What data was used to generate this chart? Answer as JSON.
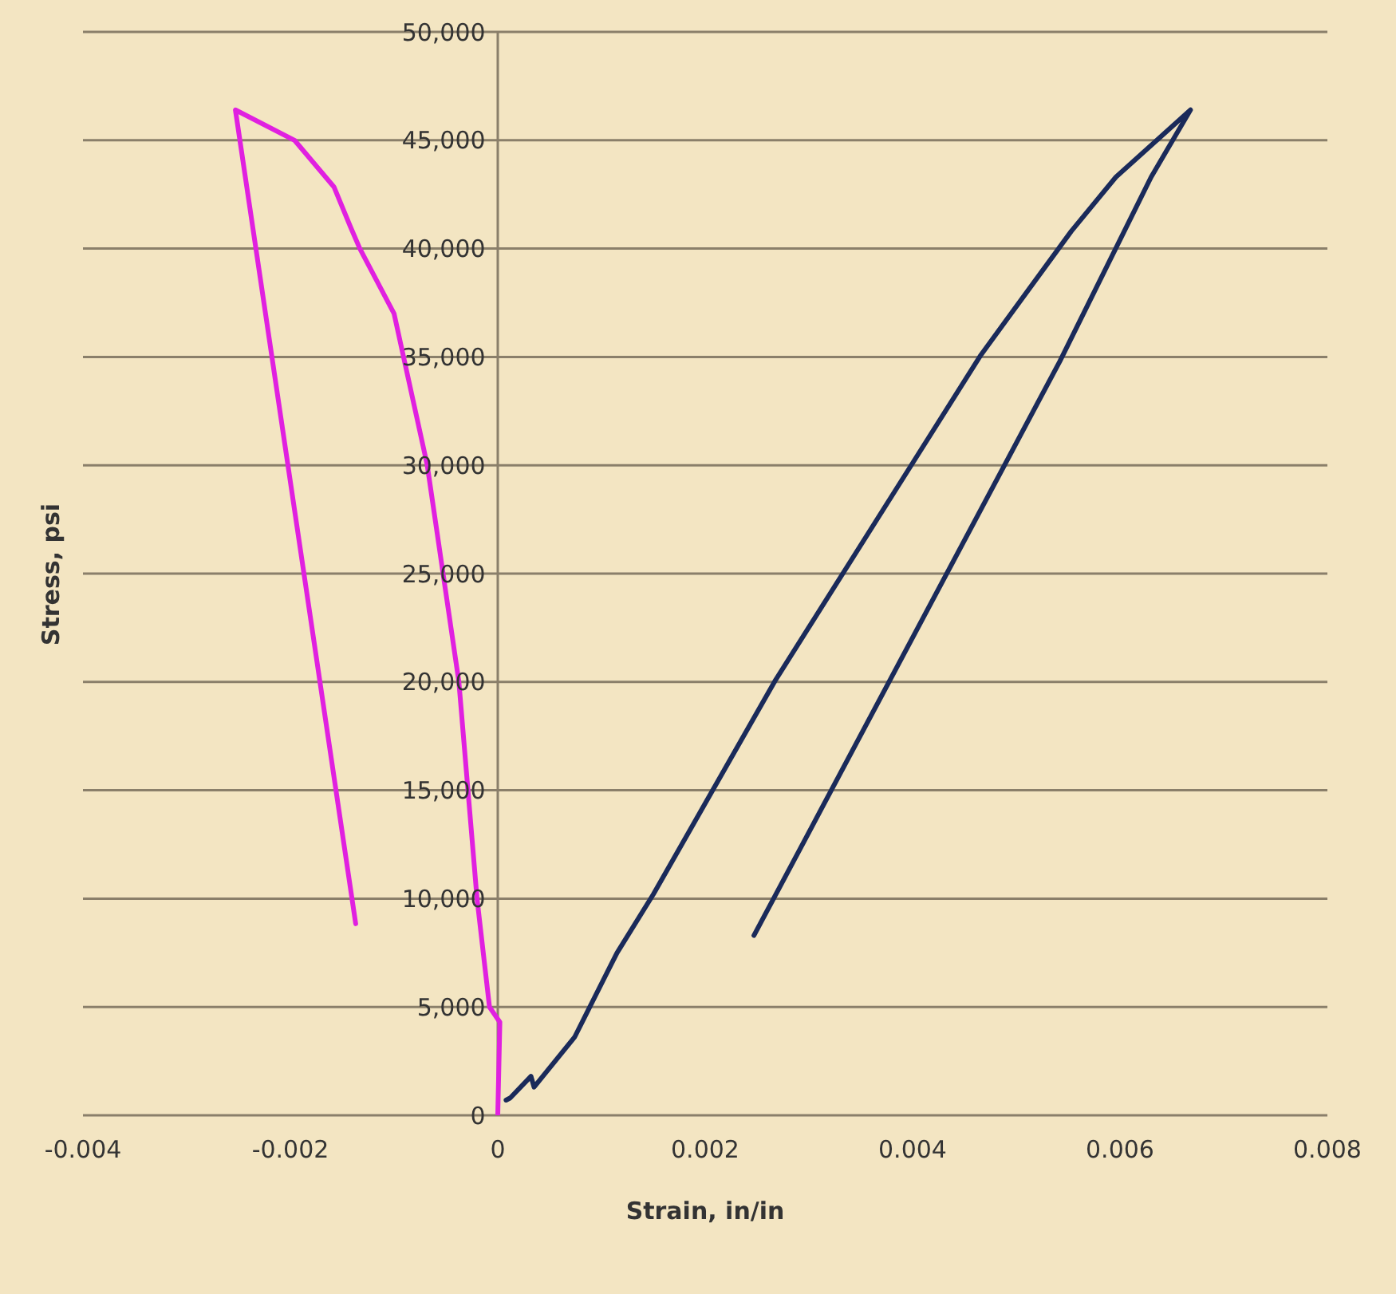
{
  "chart_data": {
    "type": "line",
    "xlabel": "Strain, in/in",
    "ylabel": "Stress, psi",
    "xlim": [
      -0.004,
      0.008
    ],
    "xticks": [
      -0.004,
      -0.002,
      0,
      0.002,
      0.004,
      0.006,
      0.008
    ],
    "ylim": [
      0,
      50000
    ],
    "yticks": [
      {
        "value": 0,
        "label": "0"
      },
      {
        "value": 5000,
        "label": "5,000"
      },
      {
        "value": 10000,
        "label": "10,000"
      },
      {
        "value": 15000,
        "label": "15,000"
      },
      {
        "value": 20000,
        "label": "20,000"
      },
      {
        "value": 25000,
        "label": "25,000"
      },
      {
        "value": 30000,
        "label": "30,000"
      },
      {
        "value": 35000,
        "label": "35,000"
      },
      {
        "value": 40000,
        "label": "40,000"
      },
      {
        "value": 45000,
        "label": "45,000"
      },
      {
        "value": 50000,
        "label": "50,000"
      }
    ],
    "grid": "y",
    "marker": "none",
    "line_style": "solid",
    "series": [
      {
        "color": "#e020e0",
        "x": [
          0,
          2e-05,
          -8e-05,
          -0.0002,
          -0.000375,
          -0.00068,
          -0.001,
          -0.00133,
          -0.00142,
          -0.00158,
          -0.00196,
          -0.00253,
          -0.00137
        ],
        "values": [
          0,
          4300,
          5000,
          10000,
          20000,
          30000,
          37000,
          40000,
          41000,
          42850,
          45000,
          46400,
          8840
        ]
      },
      {
        "color": "#1a2a5a",
        "x": [
          8e-05,
          0.00012,
          0.00032,
          0.00035,
          0.00074,
          0.00115,
          0.0015,
          0.00268,
          0.004,
          0.00466,
          0.00553,
          0.00596,
          0.00668,
          0.0063,
          0.00542,
          0.00247
        ],
        "values": [
          700,
          800,
          1800,
          1300,
          3600,
          7500,
          10200,
          20100,
          30100,
          35100,
          40800,
          43300,
          46400,
          43300,
          34800,
          8300
        ]
      }
    ]
  }
}
